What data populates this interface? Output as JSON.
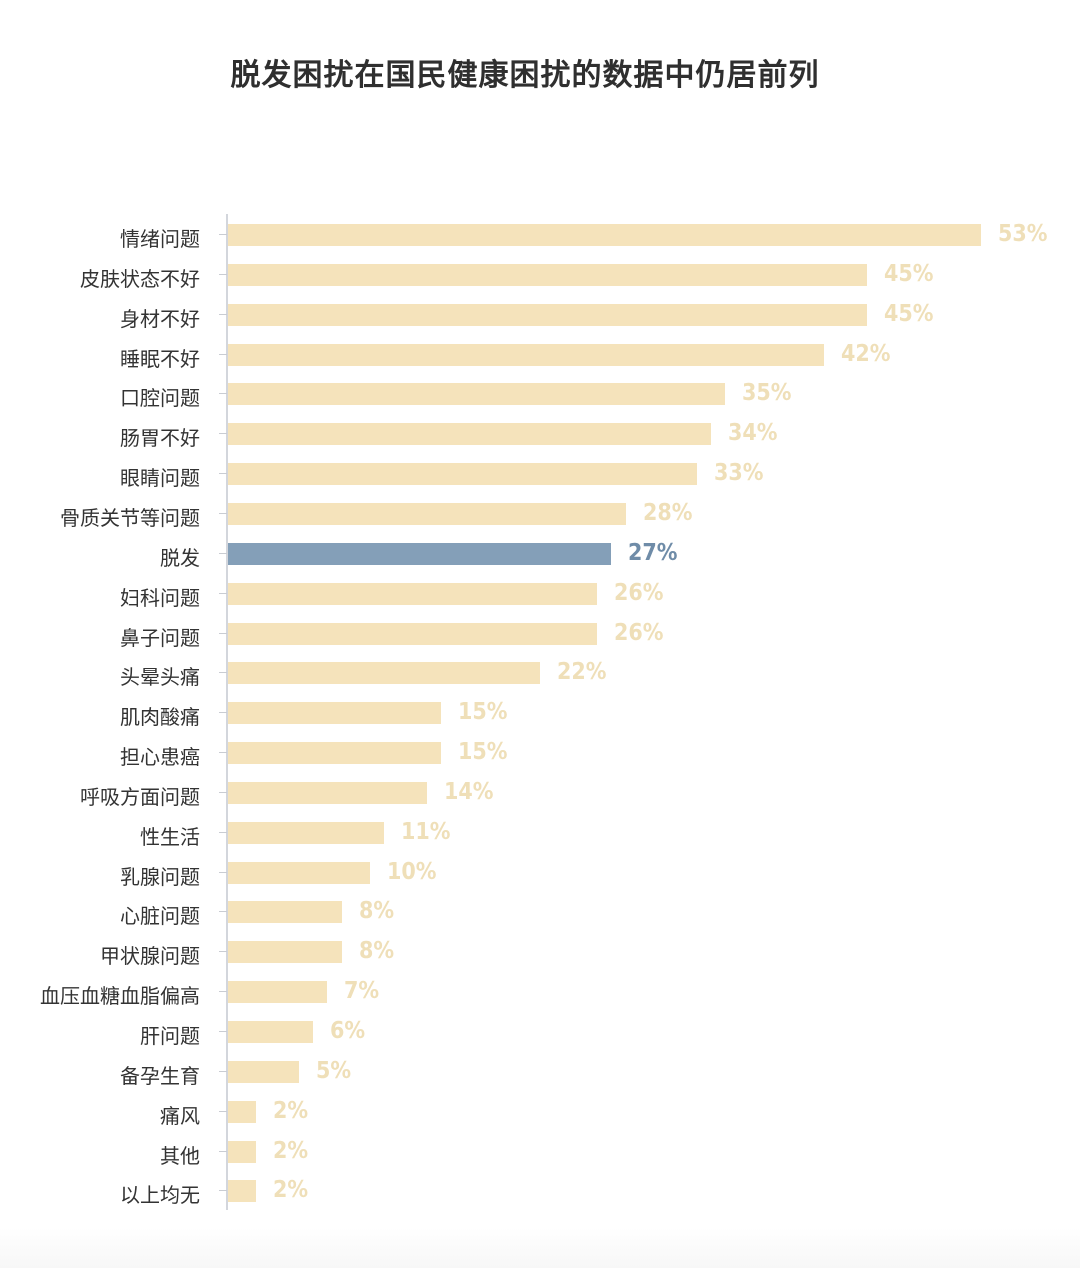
{
  "chart_data": {
    "type": "bar",
    "orientation": "horizontal",
    "title": "脱发困扰在国民健康困扰的数据中仍居前列",
    "xlabel": "",
    "ylabel": "",
    "value_suffix": "%",
    "xlim": [
      0,
      55
    ],
    "grid": false,
    "legend": null,
    "highlight_category": "脱发",
    "colors": {
      "default": "#f5e3bb",
      "highlight": "#849fb8",
      "label_default": "#efdfb8",
      "label_highlight": "#6f8ca8"
    },
    "categories": [
      "情绪问题",
      "皮肤状态不好",
      "身材不好",
      "睡眠不好",
      "口腔问题",
      "肠胃不好",
      "眼睛问题",
      "骨质关节等问题",
      "脱发",
      "妇科问题",
      "鼻子问题",
      "头晕头痛",
      "肌肉酸痛",
      "担心患癌",
      "呼吸方面问题",
      "性生活",
      "乳腺问题",
      "心脏问题",
      "甲状腺问题",
      "血压血糖血脂偏高",
      "肝问题",
      "备孕生育",
      "痛风",
      "其他",
      "以上均无"
    ],
    "values": [
      53,
      45,
      45,
      42,
      35,
      34,
      33,
      28,
      27,
      26,
      26,
      22,
      15,
      15,
      14,
      11,
      10,
      8,
      8,
      7,
      6,
      5,
      2,
      2,
      2
    ]
  },
  "rows": [
    {
      "label": "情绪问题",
      "value_text": "53%"
    },
    {
      "label": "皮肤状态不好",
      "value_text": "45%"
    },
    {
      "label": "身材不好",
      "value_text": "45%"
    },
    {
      "label": "睡眠不好",
      "value_text": "42%"
    },
    {
      "label": "口腔问题",
      "value_text": "35%"
    },
    {
      "label": "肠胃不好",
      "value_text": "34%"
    },
    {
      "label": "眼睛问题",
      "value_text": "33%"
    },
    {
      "label": "骨质关节等问题",
      "value_text": "28%"
    },
    {
      "label": "脱发",
      "value_text": "27%"
    },
    {
      "label": "妇科问题",
      "value_text": "26%"
    },
    {
      "label": "鼻子问题",
      "value_text": "26%"
    },
    {
      "label": "头晕头痛",
      "value_text": "22%"
    },
    {
      "label": "肌肉酸痛",
      "value_text": "15%"
    },
    {
      "label": "担心患癌",
      "value_text": "15%"
    },
    {
      "label": "呼吸方面问题",
      "value_text": "14%"
    },
    {
      "label": "性生活",
      "value_text": "11%"
    },
    {
      "label": "乳腺问题",
      "value_text": "10%"
    },
    {
      "label": "心脏问题",
      "value_text": "8%"
    },
    {
      "label": "甲状腺问题",
      "value_text": "8%"
    },
    {
      "label": "血压血糖血脂偏高",
      "value_text": "7%"
    },
    {
      "label": "肝问题",
      "value_text": "6%"
    },
    {
      "label": "备孕生育",
      "value_text": "5%"
    },
    {
      "label": "痛风",
      "value_text": "2%"
    },
    {
      "label": "其他",
      "value_text": "2%"
    },
    {
      "label": "以上均无",
      "value_text": "2%"
    }
  ]
}
